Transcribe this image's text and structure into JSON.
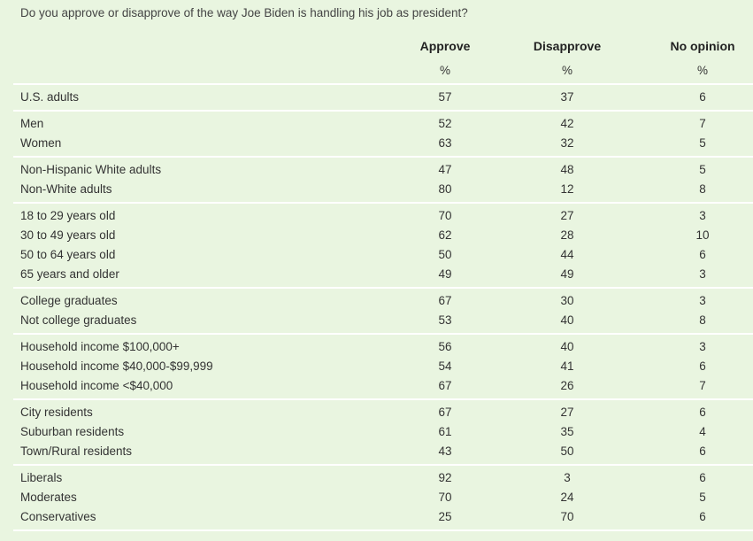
{
  "title": "Do you approve or disapprove of the way Joe Biden is handling his job as president?",
  "table": {
    "columns": [
      "Approve",
      "Disapprove",
      "No opinion"
    ],
    "units": [
      "%",
      "%",
      "%"
    ],
    "groups": [
      [
        [
          "U.S. adults",
          57,
          37,
          6
        ]
      ],
      [
        [
          "Men",
          52,
          42,
          7
        ],
        [
          "Women",
          63,
          32,
          5
        ]
      ],
      [
        [
          "Non-Hispanic White adults",
          47,
          48,
          5
        ],
        [
          "Non-White adults",
          80,
          12,
          8
        ]
      ],
      [
        [
          "18 to 29 years old",
          70,
          27,
          3
        ],
        [
          "30 to 49 years old",
          62,
          28,
          10
        ],
        [
          "50 to 64 years old",
          50,
          44,
          6
        ],
        [
          "65 years and older",
          49,
          49,
          3
        ]
      ],
      [
        [
          "College graduates",
          67,
          30,
          3
        ],
        [
          "Not college graduates",
          53,
          40,
          8
        ]
      ],
      [
        [
          "Household income $100,000+",
          56,
          40,
          3
        ],
        [
          "Household income $40,000-$99,999",
          54,
          41,
          6
        ],
        [
          "Household income <$40,000",
          67,
          26,
          7
        ]
      ],
      [
        [
          "City residents",
          67,
          27,
          6
        ],
        [
          "Suburban residents",
          61,
          35,
          4
        ],
        [
          "Town/Rural residents",
          43,
          50,
          6
        ]
      ],
      [
        [
          "Liberals",
          92,
          3,
          6
        ],
        [
          "Moderates",
          70,
          24,
          5
        ],
        [
          "Conservatives",
          25,
          70,
          6
        ]
      ]
    ]
  }
}
